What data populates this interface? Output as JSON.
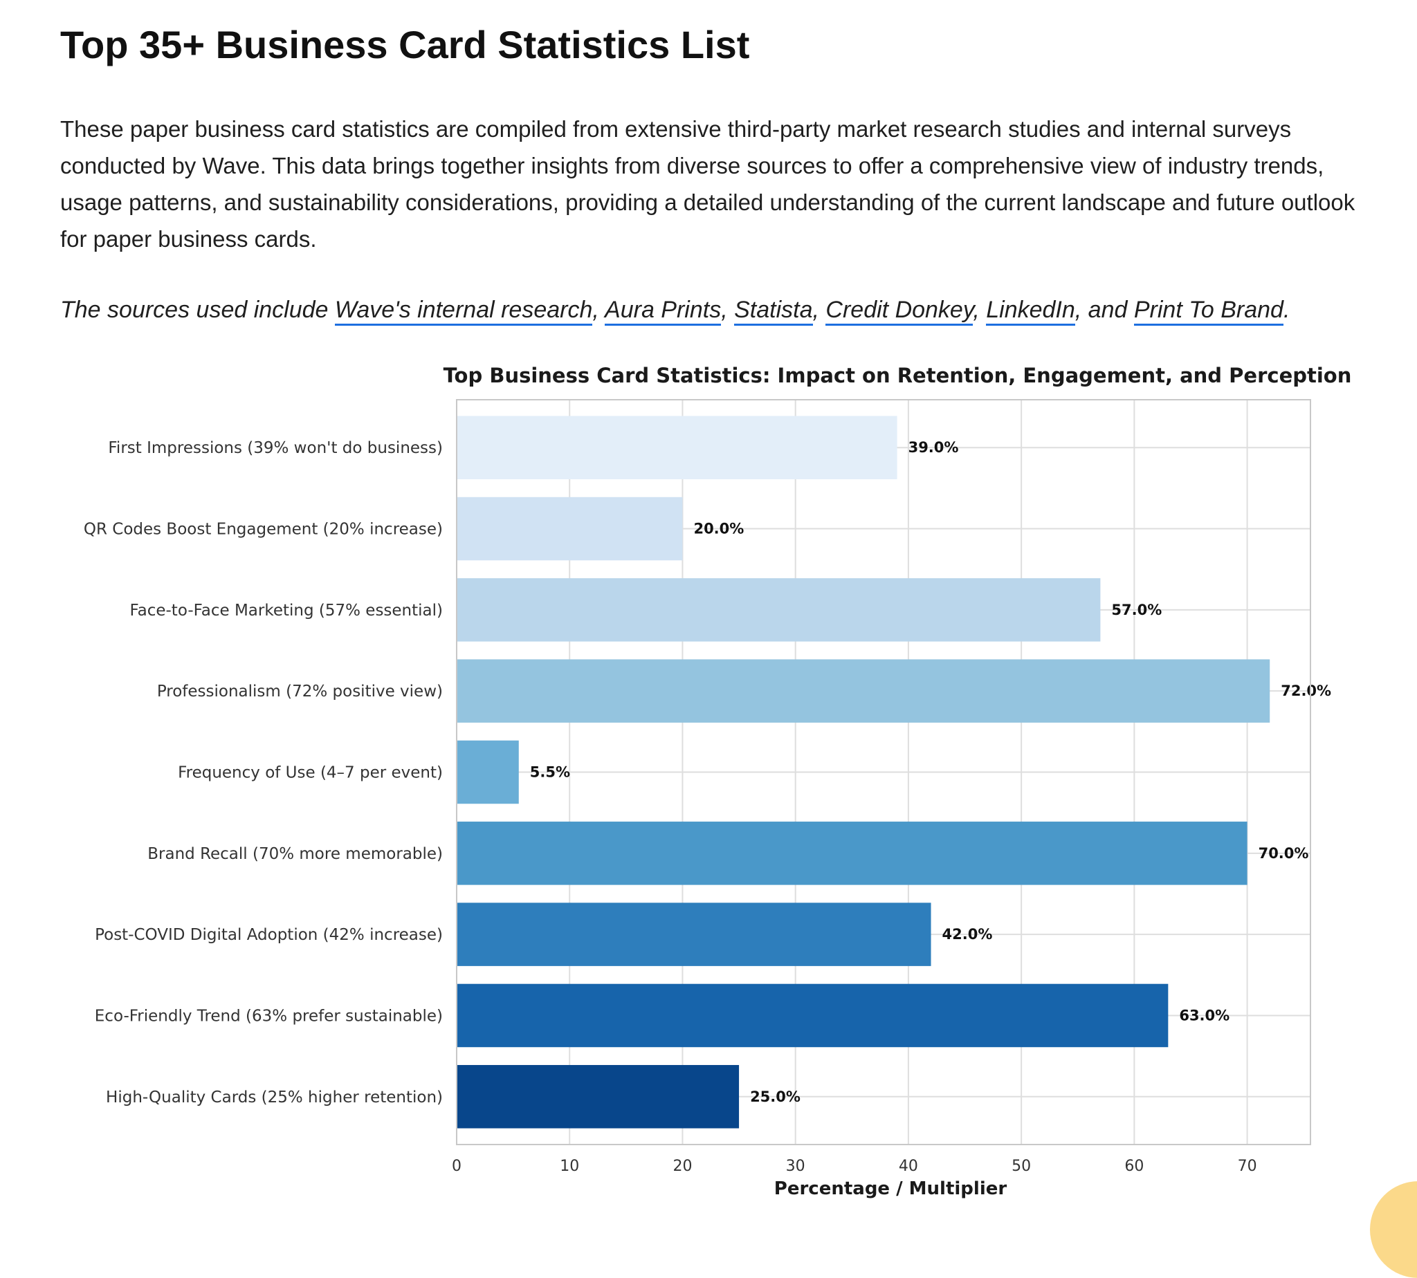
{
  "page": {
    "title": "Top 35+ Business Card Statistics List",
    "intro": "These paper business card statistics are compiled from extensive third-party market research studies and internal surveys conducted by Wave. This data brings together insights from diverse sources to offer a comprehensive view of industry trends, usage patterns, and sustainability considerations, providing a detailed understanding of the current landscape and future outlook for paper business cards.",
    "sources": {
      "prefix": "The sources used include ",
      "sep": ", ",
      "and_text": ", and ",
      "suffix": ".",
      "links": [
        "Wave's internal research",
        "Aura Prints",
        "Statista",
        "Credit Donkey",
        "LinkedIn",
        "Print To Brand"
      ],
      "link_color": "#1d6fe0"
    }
  },
  "chart_data": {
    "type": "bar",
    "orientation": "horizontal",
    "title": "Top Business Card Statistics: Impact on Retention, Engagement, and Perception",
    "xlabel": "Percentage / Multiplier",
    "ylabel": "",
    "xlim": [
      0,
      75.6
    ],
    "xticks": [
      0,
      10,
      20,
      30,
      40,
      50,
      60,
      70
    ],
    "grid": true,
    "legend": "none",
    "categories": [
      "First Impressions (39% won't do business)",
      "QR Codes Boost Engagement (20% increase)",
      "Face-to-Face Marketing (57% essential)",
      "Professionalism (72% positive view)",
      "Frequency of Use (4–7 per event)",
      "Brand Recall (70% more memorable)",
      "Post-COVID Digital Adoption (42% increase)",
      "Eco-Friendly Trend (63% prefer sustainable)",
      "High-Quality Cards (25% higher retention)"
    ],
    "values": [
      39.0,
      20.0,
      57.0,
      72.0,
      5.5,
      70.0,
      42.0,
      63.0,
      25.0
    ],
    "value_labels": [
      "39.0%",
      "20.0%",
      "57.0%",
      "72.0%",
      "5.5%",
      "70.0%",
      "42.0%",
      "63.0%",
      "25.0%"
    ],
    "colors": [
      "#e3eef9",
      "#d0e2f3",
      "#bad6eb",
      "#94c4df",
      "#6aaed6",
      "#4a98c9",
      "#2e7ebc",
      "#1764ab",
      "#08468b"
    ]
  }
}
